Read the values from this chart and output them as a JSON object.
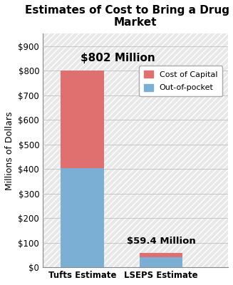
{
  "title": "Estimates of Cost to Bring a Drug to\nMarket",
  "categories": [
    "Tufts Estimate",
    "LSEPS Estimate"
  ],
  "out_of_pocket": [
    403,
    40
  ],
  "cost_of_capital": [
    399,
    19.4
  ],
  "totals_label": [
    "$802 Million",
    "$59.4 Million"
  ],
  "color_blue": "#7BAFD4",
  "color_red": "#E07070",
  "ylabel": "Millions of Dollars",
  "ylim": [
    0,
    950
  ],
  "yticks": [
    0,
    100,
    200,
    300,
    400,
    500,
    600,
    700,
    800,
    900
  ],
  "ytick_labels": [
    "$0",
    "$100",
    "$200",
    "$300",
    "$400",
    "$500",
    "$600",
    "$700",
    "$800",
    "$900"
  ],
  "legend_cost_capital": "Cost of Capital",
  "legend_out_of_pocket": "Out-of-pocket",
  "background_color": "#FFFFFF",
  "bar_width": 0.55,
  "title_fontsize": 11,
  "label_fontsize": 9,
  "tick_fontsize": 8.5
}
